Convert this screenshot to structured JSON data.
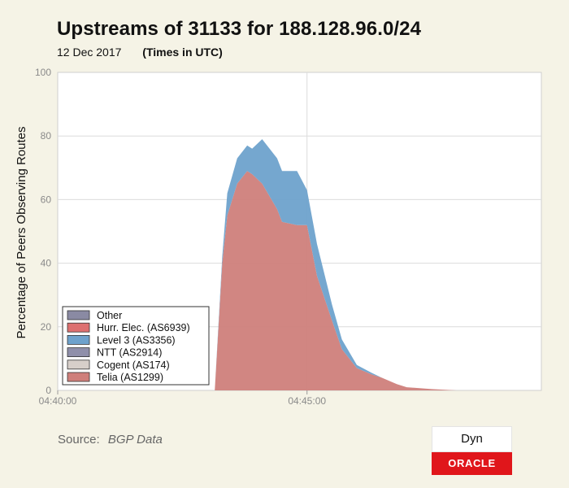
{
  "chart_data": {
    "type": "area",
    "stacked": true,
    "title": "Upstreams of 31133 for 188.128.96.0/24",
    "subtitle_date": "12 Dec 2017",
    "subtitle_tz": "(Times in UTC)",
    "xlabel": "",
    "ylabel": "Percentage of Peers Observing Routes",
    "ylim": [
      0,
      100
    ],
    "yticks": [
      0,
      20,
      40,
      60,
      80,
      100
    ],
    "xticks": [
      "04:40:00",
      "04:45:00"
    ],
    "x_range_minutes": [
      0,
      9.7
    ],
    "x": [
      3.1,
      3.15,
      3.3,
      3.4,
      3.6,
      3.8,
      3.9,
      4.1,
      4.4,
      4.5,
      4.8,
      5.0,
      5.2,
      5.5,
      5.7,
      6.0,
      6.3,
      6.5,
      6.8,
      7.0,
      7.5,
      8.0,
      9.7
    ],
    "grid": true,
    "legend_position": "lower-left",
    "series": [
      {
        "name": "Telia (AS1299)",
        "color": "#cf7f7b",
        "values": [
          0,
          0,
          40,
          55,
          65,
          69,
          68,
          65,
          57,
          53,
          52,
          52,
          36,
          22,
          13,
          7,
          5,
          4,
          2,
          1,
          0.4,
          0,
          0
        ]
      },
      {
        "name": "Cogent (AS174)",
        "color": "#d7cfca",
        "values": [
          0,
          0,
          0,
          0,
          0,
          0,
          0,
          0,
          0,
          0,
          0,
          0,
          0,
          0,
          0,
          0,
          0,
          0,
          0,
          0,
          0,
          0,
          0
        ]
      },
      {
        "name": "NTT (AS2914)",
        "color": "#8f8faa",
        "values": [
          0,
          0,
          0,
          0,
          0,
          0,
          0,
          0,
          0,
          0,
          0,
          0,
          0,
          0,
          0,
          0,
          0,
          0,
          0,
          0,
          0,
          0,
          0
        ]
      },
      {
        "name": "Level 3 (AS3356)",
        "color": "#6ea2cc",
        "values": [
          0,
          0,
          2,
          7,
          8,
          8,
          8,
          14,
          16,
          16,
          17,
          11,
          10,
          5,
          3,
          1,
          0.5,
          0,
          0,
          0,
          0,
          0,
          0
        ]
      },
      {
        "name": "Hurr. Elec. (AS6939)",
        "color": "#dd7070",
        "values": [
          0,
          0,
          0,
          0,
          0,
          0,
          0,
          0,
          0,
          0,
          0,
          0,
          0,
          0,
          0,
          0,
          0,
          0,
          0,
          0,
          0,
          0,
          0
        ]
      },
      {
        "name": "Other",
        "color": "#8a8aa3",
        "values": [
          0,
          0,
          0,
          0,
          0,
          0,
          0,
          0,
          0,
          0,
          0,
          0,
          0,
          0,
          0,
          0,
          0,
          0,
          0,
          0,
          0,
          0,
          0
        ]
      }
    ]
  },
  "source": {
    "label": "Source:",
    "name": "BGP Data"
  },
  "logos": {
    "dyn": "Dyn",
    "oracle": "ORACLE"
  }
}
